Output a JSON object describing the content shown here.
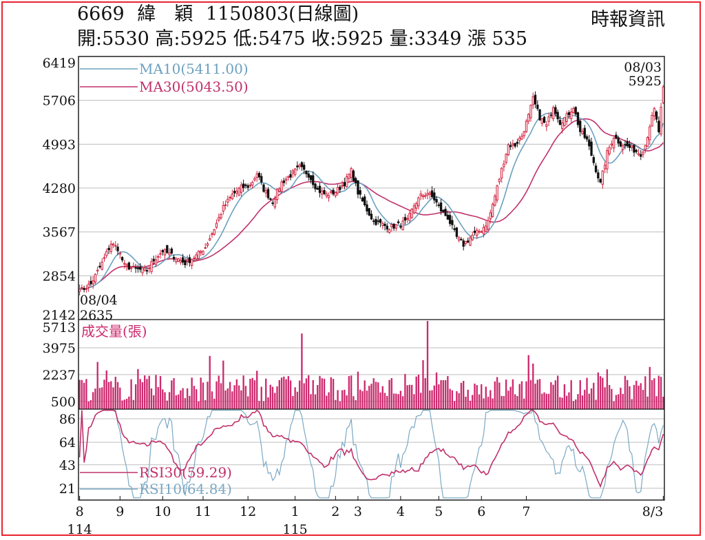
{
  "header": {
    "code": "6669",
    "name": "緯　穎",
    "chart_title": "1150803(日線圖)",
    "source": "時報資訊",
    "ohlc_line": "開:5530 高:5925 低:5475 收:5925 量:3349 漲 535"
  },
  "colors": {
    "frame": "#e8232e",
    "up": "#d21f3c",
    "down": "#111111",
    "ma10": "#6aa0c0",
    "ma30": "#c0306a",
    "volume": "#cc2a6e",
    "rsi10": "#7aa8c4",
    "rsi30": "#c0306a"
  },
  "chart_data": [
    {
      "type": "candlestick",
      "title": "6669 緯　穎 1150803(日線圖)",
      "ylim": [
        2142,
        6419
      ],
      "yticks": [
        6419,
        5706,
        4993,
        4280,
        3567,
        2854,
        2142
      ],
      "grid": true,
      "legend": [
        {
          "name": "MA10",
          "label": "MA10(5411.00)",
          "color": "#6aa0c0"
        },
        {
          "name": "MA30",
          "label": "MA30(5043.50)",
          "color": "#c0306a"
        }
      ],
      "annotations": {
        "low_date": "08/04",
        "low_value": "2635",
        "high_date": "08/03",
        "high_value": "5925"
      },
      "anchors": [
        [
          0,
          2600
        ],
        [
          5,
          2720
        ],
        [
          10,
          3060
        ],
        [
          14,
          3380
        ],
        [
          17,
          3300
        ],
        [
          20,
          3020
        ],
        [
          25,
          2960
        ],
        [
          30,
          2940
        ],
        [
          33,
          3110
        ],
        [
          37,
          3260
        ],
        [
          42,
          3170
        ],
        [
          47,
          3060
        ],
        [
          52,
          3180
        ],
        [
          56,
          3320
        ],
        [
          60,
          3620
        ],
        [
          64,
          3960
        ],
        [
          68,
          4170
        ],
        [
          72,
          4290
        ],
        [
          76,
          4320
        ],
        [
          79,
          4520
        ],
        [
          82,
          4260
        ],
        [
          86,
          4060
        ],
        [
          90,
          4370
        ],
        [
          94,
          4490
        ],
        [
          98,
          4620
        ],
        [
          102,
          4500
        ],
        [
          106,
          4250
        ],
        [
          110,
          4170
        ],
        [
          114,
          4220
        ],
        [
          118,
          4360
        ],
        [
          121,
          4560
        ],
        [
          124,
          4210
        ],
        [
          127,
          3990
        ],
        [
          131,
          3740
        ],
        [
          134,
          3700
        ],
        [
          138,
          3640
        ],
        [
          142,
          3680
        ],
        [
          146,
          3740
        ],
        [
          149,
          4000
        ],
        [
          152,
          4150
        ],
        [
          155,
          4200
        ],
        [
          158,
          4100
        ],
        [
          161,
          3920
        ],
        [
          164,
          3800
        ],
        [
          168,
          3480
        ],
        [
          171,
          3360
        ],
        [
          175,
          3510
        ],
        [
          179,
          3600
        ],
        [
          182,
          3740
        ],
        [
          185,
          4150
        ],
        [
          188,
          4580
        ],
        [
          191,
          4980
        ],
        [
          194,
          4980
        ],
        [
          197,
          5130
        ],
        [
          200,
          5450
        ],
        [
          202,
          5730
        ],
        [
          205,
          5430
        ],
        [
          208,
          5290
        ],
        [
          211,
          5620
        ],
        [
          214,
          5350
        ],
        [
          217,
          5450
        ],
        [
          220,
          5600
        ],
        [
          223,
          5200
        ],
        [
          226,
          5060
        ],
        [
          229,
          4700
        ],
        [
          232,
          4350
        ],
        [
          235,
          4850
        ],
        [
          238,
          5120
        ],
        [
          241,
          5000
        ],
        [
          244,
          4960
        ],
        [
          247,
          4900
        ],
        [
          250,
          4840
        ],
        [
          252,
          4980
        ],
        [
          254,
          5300
        ],
        [
          256,
          5550
        ],
        [
          258,
          5200
        ],
        [
          260,
          5925
        ]
      ],
      "vol_ylim": [
        0,
        5713
      ],
      "vol_yticks": [
        5713,
        3975,
        2237,
        500
      ],
      "vol_label": "成交量(張)",
      "volume_peaks": [
        [
          99,
          4900
        ],
        [
          155,
          5713
        ],
        [
          58,
          3450
        ],
        [
          200,
          3500
        ]
      ],
      "rsi_ylim": [
        10,
        95
      ],
      "rsi_yticks": [
        86,
        64,
        43,
        21
      ],
      "rsi_legend": [
        {
          "name": "RSI30",
          "label": "RSI30(59.29)",
          "color": "#c0306a"
        },
        {
          "name": "RSI10",
          "label": "RSI10(64.84)",
          "color": "#7aa8c4"
        }
      ],
      "x_ticks": [
        {
          "label": "8",
          "sub": "114",
          "i": 0
        },
        {
          "label": "9",
          "i": 18
        },
        {
          "label": "10",
          "i": 37
        },
        {
          "label": "11",
          "i": 55
        },
        {
          "label": "12",
          "i": 75
        },
        {
          "label": "1",
          "sub": "115",
          "i": 96
        },
        {
          "label": "2",
          "i": 114
        },
        {
          "label": "3",
          "i": 124
        },
        {
          "label": "4",
          "i": 143
        },
        {
          "label": "5",
          "i": 160
        },
        {
          "label": "6",
          "i": 179
        },
        {
          "label": "7",
          "i": 199
        },
        {
          "label": "8/3",
          "i": 220
        }
      ]
    }
  ]
}
